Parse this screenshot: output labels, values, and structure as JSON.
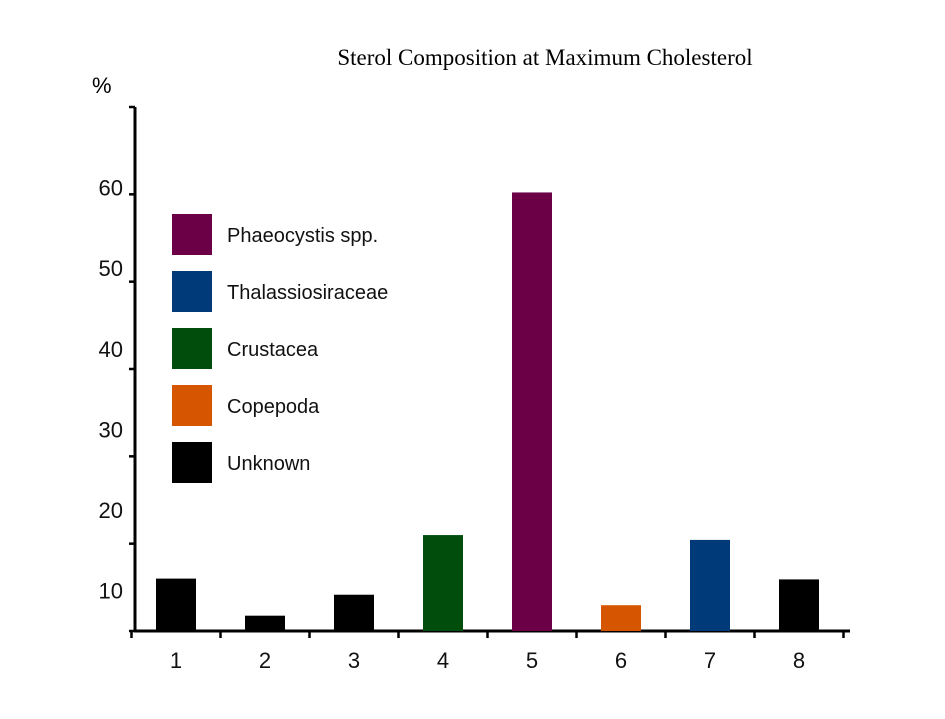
{
  "chart_data": {
    "type": "bar",
    "title": "Sterol Composition at Maximum Cholesterol",
    "xlabel": "",
    "ylabel": "%",
    "ylim": [
      5,
      70
    ],
    "yticks": [
      10,
      20,
      30,
      40,
      50,
      60
    ],
    "grid": false,
    "legend_position": "upper-left",
    "categories": [
      "1",
      "2",
      "3",
      "4",
      "5",
      "6",
      "7",
      "8"
    ],
    "values": [
      11.5,
      6.9,
      9.5,
      16.9,
      59.4,
      8.2,
      16.3,
      11.4
    ],
    "bar_groups": [
      "Unknown",
      "Unknown",
      "Unknown",
      "Crustacea",
      "Phaeocystis spp.",
      "Copepoda",
      "Thalassiosiraceae",
      "Unknown"
    ],
    "legend": [
      {
        "label": "Phaeocystis spp.",
        "color": "#6b0047"
      },
      {
        "label": "Thalassiosiraceae",
        "color": "#003a78"
      },
      {
        "label": "Crustacea",
        "color": "#004d0c"
      },
      {
        "label": "Copepoda",
        "color": "#d65500"
      },
      {
        "label": "Unknown",
        "color": "#000000"
      }
    ]
  }
}
